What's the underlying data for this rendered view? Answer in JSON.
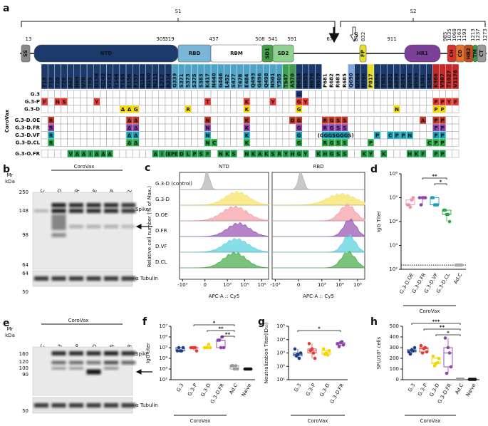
{
  "panel_a": {
    "letter": "a",
    "s1": "S1",
    "s2": "S2",
    "domains": [
      "SS",
      "NTD",
      "RBD",
      "RBM",
      "SD1",
      "SD2",
      "FP",
      "HR1",
      "CH",
      "CD",
      "HR2",
      "TM",
      "CT"
    ],
    "positions": [
      "13",
      "305",
      "319",
      "437",
      "508",
      "541",
      "591",
      "677",
      "816",
      "832",
      "911",
      "985",
      "1035",
      "1068",
      "1163",
      "1193",
      "1213",
      "1237",
      "1273"
    ],
    "mutations": [
      "T18",
      "T19",
      "T20",
      "T26",
      "A67",
      "H69",
      "V70",
      "T95",
      "D138",
      "G142",
      "V143",
      "Y144",
      "Y145",
      "E156",
      "F157",
      "R158",
      "N190",
      "N211",
      "L212",
      "A214",
      "G339",
      "S371",
      "S373",
      "S375",
      "S383",
      "K417",
      "N440",
      "G446",
      "L452",
      "S477",
      "T478",
      "E484",
      "Q493",
      "G496",
      "Q498",
      "N501",
      "Y505",
      "T547",
      "A570",
      "D614",
      "H655",
      "N676",
      "N679",
      "P681",
      "R682",
      "R683",
      "R685",
      "Q690",
      "D764",
      "D796",
      "P817",
      "A856",
      "T883",
      "A892",
      "A899",
      "A942",
      "Q954",
      "N969",
      "L981",
      "S982",
      "K986",
      "V987",
      "T1027",
      "V1176"
    ],
    "group_label": "CoroVax",
    "rows": [
      {
        "name": "G.3",
        "color": "#1f3c88",
        "cells": [
          null,
          null,
          null,
          null,
          null,
          null,
          null,
          null,
          null,
          null,
          null,
          null,
          null,
          null,
          null,
          null,
          null,
          null,
          null,
          null,
          null,
          null,
          null,
          null,
          null,
          null,
          null,
          null,
          null,
          null,
          null,
          null,
          null,
          null,
          null,
          null,
          null,
          null,
          null,
          "G",
          null,
          null,
          null,
          null,
          null,
          null,
          null,
          null,
          null,
          null,
          null,
          null,
          null,
          null,
          null,
          null,
          null,
          null,
          null,
          null,
          null,
          null,
          null,
          null
        ]
      },
      {
        "name": "G.3-P",
        "color": "#e53935",
        "cells": [
          "F",
          null,
          "N",
          "S",
          null,
          null,
          null,
          null,
          "Y",
          null,
          null,
          null,
          null,
          null,
          null,
          null,
          null,
          null,
          null,
          null,
          null,
          null,
          null,
          null,
          null,
          "T",
          null,
          null,
          null,
          null,
          null,
          "K",
          null,
          null,
          null,
          "Y",
          null,
          null,
          null,
          "G",
          "Y",
          null,
          null,
          null,
          null,
          null,
          null,
          null,
          null,
          null,
          null,
          null,
          null,
          null,
          null,
          null,
          null,
          null,
          null,
          null,
          "P",
          "P",
          "Y",
          "F"
        ]
      },
      {
        "name": "G.3-D",
        "color": "#f2d600",
        "cells": [
          null,
          null,
          null,
          null,
          null,
          null,
          null,
          null,
          null,
          null,
          null,
          null,
          "Δ",
          "Δ",
          "G",
          null,
          null,
          null,
          null,
          null,
          null,
          null,
          "R",
          null,
          null,
          null,
          null,
          null,
          null,
          null,
          null,
          "K",
          null,
          null,
          null,
          null,
          null,
          null,
          null,
          "G",
          null,
          null,
          null,
          null,
          null,
          null,
          null,
          null,
          null,
          null,
          null,
          null,
          null,
          null,
          "N",
          null,
          null,
          null,
          null,
          null,
          "P",
          "P",
          null,
          null
        ]
      },
      {
        "name": "G.3-D.OE",
        "color": "#c0392b",
        "cells": [
          null,
          "R",
          null,
          null,
          null,
          null,
          null,
          null,
          null,
          null,
          null,
          null,
          null,
          "Δ",
          "Δ",
          null,
          null,
          null,
          null,
          null,
          null,
          null,
          null,
          null,
          null,
          "N",
          null,
          null,
          null,
          null,
          null,
          "K",
          null,
          null,
          null,
          null,
          null,
          null,
          "D",
          "G",
          null,
          null,
          null,
          "R",
          "G",
          "S",
          "S",
          null,
          null,
          null,
          null,
          null,
          null,
          null,
          null,
          null,
          null,
          null,
          "A",
          null,
          "P",
          "P",
          null,
          null
        ]
      },
      {
        "name": "G.3-D.FR",
        "color": "#8e44ad",
        "cells": [
          null,
          "R",
          null,
          null,
          null,
          null,
          null,
          null,
          null,
          null,
          null,
          null,
          null,
          "Δ",
          "Δ",
          null,
          null,
          null,
          null,
          null,
          null,
          null,
          null,
          null,
          null,
          "N",
          null,
          null,
          null,
          null,
          null,
          "K",
          null,
          null,
          null,
          null,
          null,
          null,
          null,
          "G",
          null,
          null,
          null,
          "R",
          "G",
          "S",
          "S",
          null,
          null,
          null,
          null,
          null,
          null,
          null,
          null,
          null,
          null,
          null,
          null,
          null,
          "P",
          "P",
          null,
          null
        ]
      },
      {
        "name": "G.3-D.VF",
        "color": "#17a2b8",
        "cells": [
          null,
          "R",
          null,
          null,
          null,
          null,
          null,
          null,
          null,
          null,
          null,
          null,
          null,
          "Δ",
          "Δ",
          null,
          null,
          null,
          null,
          null,
          null,
          null,
          null,
          null,
          null,
          "N",
          null,
          null,
          null,
          null,
          null,
          "K",
          null,
          null,
          null,
          null,
          null,
          null,
          null,
          "G",
          null,
          null,
          null,
          "(GGGSGGGS)",
          null,
          null,
          null,
          null,
          null,
          null,
          null,
          "P",
          null,
          "C",
          "P",
          "P",
          "N",
          null,
          null,
          null,
          "P",
          "P",
          null,
          null
        ]
      },
      {
        "name": "G.3-D.CL",
        "color": "#28a745",
        "cells": [
          null,
          "R",
          null,
          null,
          null,
          null,
          null,
          null,
          null,
          null,
          null,
          null,
          null,
          "Δ",
          "Δ",
          null,
          null,
          null,
          null,
          null,
          null,
          null,
          null,
          null,
          null,
          "N",
          "C",
          null,
          null,
          null,
          null,
          "K",
          null,
          null,
          null,
          null,
          null,
          null,
          null,
          "G",
          null,
          null,
          null,
          "R",
          "G",
          "S",
          "S",
          null,
          null,
          null,
          "P",
          null,
          null,
          null,
          null,
          null,
          null,
          null,
          null,
          "C",
          "P",
          "P",
          null,
          null
        ]
      },
      {
        "name": "G.3-O.FR",
        "color": "#1e9e4a",
        "cells": [
          null,
          null,
          null,
          null,
          "V",
          "Δ",
          "Δ",
          "I",
          "Δ",
          "Δ",
          "Δ",
          null,
          null,
          null,
          null,
          null,
          null,
          "Δ",
          "I",
          "(EPE)",
          null,
          "D",
          "L",
          "P",
          "S",
          "F",
          null,
          "N",
          "K",
          "S",
          null,
          "N",
          "K",
          "A",
          "K",
          "S",
          "R",
          "Y",
          "H",
          "G",
          "Y",
          null,
          "K",
          "H",
          "G",
          "S",
          "S",
          null,
          null,
          "K",
          "Y",
          null,
          "K",
          null,
          null,
          null,
          "H",
          "K",
          "F",
          null,
          "P",
          "P",
          null,
          null
        ]
      }
    ]
  },
  "panel_b": {
    "letter": "b",
    "group_label": "CoroVax",
    "mr": "Mr",
    "kda": "kDa",
    "markers": [
      "250",
      "148",
      "98",
      "64",
      "64",
      "50"
    ],
    "lanes": [
      "Ad.C",
      "G.3-D",
      "G.3-D.FR",
      "G.3-D.OE",
      "G.3-D.VF",
      "G.3-CL"
    ],
    "spike": "Spike",
    "tubulin": "α Tubulin"
  },
  "panel_c": {
    "letter": "c",
    "titles": [
      "NTD",
      "RBD"
    ],
    "ylabel": "Relative cell number (% of Max.)",
    "xlabel": "APC-A :: Cy5",
    "xlim": [
      -1500,
      250000
    ],
    "xticks": [
      {
        "value": -1000,
        "label": "-10³"
      },
      0,
      {
        "value": 1000,
        "label": "10³"
      },
      {
        "value": 10000,
        "label": "10⁴"
      },
      {
        "value": 100000,
        "label": "10⁵"
      }
    ],
    "samples": [
      {
        "name": "G.3-D (control)",
        "color": "#b5b5b5"
      },
      {
        "name": "G.3-D",
        "color": "#f7e36a"
      },
      {
        "name": "D.OE",
        "color": "#f4a3a8"
      },
      {
        "name": "D.FR",
        "color": "#9b59b6"
      },
      {
        "name": "D.VF",
        "color": "#5fd3e0"
      },
      {
        "name": "D.CL",
        "color": "#4caf50"
      }
    ]
  },
  "panel_d": {
    "letter": "d",
    "ylabel": "IgG Titer",
    "log": true,
    "ylim": [
      100,
      1000000
    ],
    "yticks": [
      {
        "value": 100,
        "label": "10²"
      },
      {
        "value": 1000,
        "label": "10³"
      },
      {
        "value": 10000,
        "label": "10⁴"
      },
      {
        "value": 100000,
        "label": "10⁵"
      },
      {
        "value": 1000000,
        "label": "10⁶"
      }
    ],
    "categories": [
      "G.3-D.OE",
      "G.3-D.FR",
      "G.3-D.VF",
      "G.3-D.CL",
      "Ad.C"
    ],
    "colors": [
      "#f48fb1",
      "#8e44ad",
      "#17a2b8",
      "#28a745",
      "#aaaaaa"
    ],
    "values": [
      [
        50000,
        40000,
        100000,
        50000,
        80000
      ],
      [
        100000,
        100000,
        100000,
        50000,
        100000
      ],
      [
        100000,
        50000,
        50000,
        100000,
        50000
      ],
      [
        30000,
        20000,
        10000,
        30000,
        20000
      ],
      [
        150,
        150,
        150,
        150,
        150
      ]
    ],
    "detection_limit": 150,
    "significance": [
      {
        "label": "**",
        "groups": [
          "G.3-D.FR",
          "G.3-D.CL"
        ]
      },
      {
        "label": "*",
        "groups": [
          "G.3-D.VF",
          "G.3-D.CL"
        ]
      }
    ],
    "group_label": "CoroVax"
  },
  "panel_e": {
    "letter": "e",
    "group_label": "CoroVax",
    "mr": "Mr",
    "kda": "kDa",
    "markers": [
      "160",
      "120",
      "100",
      "90",
      "50"
    ],
    "lanes": [
      "Ad.C",
      "G.3",
      "G.3-P",
      "G.3-D",
      "G.3-D.FR",
      "G.3-O.FR"
    ],
    "spike": "Spike",
    "tubulin": "α Tubulin"
  },
  "panel_f": {
    "letter": "f",
    "ylabel": "IgG titer",
    "log": true,
    "ylim": [
      100,
      10000000
    ],
    "yticks": [
      {
        "value": 100,
        "label": "10²"
      },
      {
        "value": 1000,
        "label": "10³"
      },
      {
        "value": 10000,
        "label": "10⁴"
      },
      {
        "value": 100000,
        "label": "10⁵"
      },
      {
        "value": 1000000,
        "label": "10⁶"
      },
      {
        "value": 10000000,
        "label": "10⁷"
      }
    ],
    "categories": [
      "G.3",
      "G.3-P",
      "G.3-D",
      "G.3-D.FR",
      "Ad.C",
      "Naive"
    ],
    "colors": [
      "#1f3c88",
      "#e53935",
      "#f2d600",
      "#8e44ad",
      "#999999",
      "#111111"
    ],
    "values": [
      [
        50000,
        50000,
        100000,
        100000,
        50000
      ],
      [
        100000,
        100000,
        50000,
        100000,
        100000
      ],
      [
        100000,
        100000,
        100000,
        100000,
        200000
      ],
      [
        500000,
        100000,
        100000,
        500000,
        1000000
      ],
      [
        2000,
        1000,
        1000,
        2000,
        2000
      ],
      [
        1000,
        1000,
        1000,
        1000,
        1000
      ]
    ],
    "significance": [
      {
        "label": "*",
        "groups": [
          "G.3-P",
          "Ad.C"
        ]
      },
      {
        "label": "**",
        "groups": [
          "G.3-D",
          "Ad.C"
        ]
      },
      {
        "label": "**",
        "groups": [
          "G.3-D.FR",
          "Ad.C"
        ]
      }
    ],
    "group_label": "CoroVax"
  },
  "panel_g": {
    "letter": "g",
    "ylabel": "Neutralization Titer(ID₅₀)",
    "log": true,
    "ylim": [
      10,
      100000
    ],
    "yticks": [
      {
        "value": 10,
        "label": "10¹"
      },
      {
        "value": 100,
        "label": "10²"
      },
      {
        "value": 1000,
        "label": "10³"
      },
      {
        "value": 10000,
        "label": "10⁴"
      },
      {
        "value": 100000,
        "label": "10⁵"
      }
    ],
    "categories": [
      "G.3",
      "G.3-P",
      "G.3-D",
      "G.3-D.FR"
    ],
    "colors": [
      "#1f3c88",
      "#e53935",
      "#f2d600",
      "#8e44ad"
    ],
    "values": [
      [
        2000,
        800,
        1000,
        600,
        400
      ],
      [
        5000,
        2000,
        400,
        1500,
        1000
      ],
      [
        2000,
        1000,
        1500,
        800,
        700
      ],
      [
        5000,
        6000,
        4000,
        3000,
        7000
      ]
    ],
    "significance": [
      {
        "label": "*",
        "groups": [
          "G.3",
          "G.3-D.FR"
        ]
      }
    ],
    "group_label": "CoroVax"
  },
  "panel_h": {
    "letter": "h",
    "ylabel": "SFU/10⁶ cells",
    "log": false,
    "ylim": [
      0,
      500
    ],
    "yticks": [
      0,
      100,
      200,
      300,
      400,
      500
    ],
    "categories": [
      "G.3",
      "G.3-P",
      "G.3-D",
      "G.3-D.FR",
      "Ad.C",
      "Naive"
    ],
    "colors": [
      "#1f3c88",
      "#e53935",
      "#f2d600",
      "#8e44ad",
      "#999999",
      "#111111"
    ],
    "values": [
      [
        260,
        280,
        300,
        240,
        270
      ],
      [
        320,
        290,
        260,
        250,
        300
      ],
      [
        220,
        150,
        200,
        130,
        160
      ],
      [
        390,
        300,
        120,
        60,
        250
      ],
      [
        5,
        5,
        5,
        5,
        5
      ],
      [
        3,
        3,
        3,
        3,
        3
      ]
    ],
    "significance": [
      {
        "label": "***",
        "groups": [
          "G.3",
          "Ad.C"
        ]
      },
      {
        "label": "**",
        "groups": [
          "G.3-P",
          "Ad.C"
        ]
      },
      {
        "label": "*",
        "groups": [
          "G.3-D",
          "Ad.C"
        ]
      }
    ],
    "group_label": "CoroVax"
  }
}
